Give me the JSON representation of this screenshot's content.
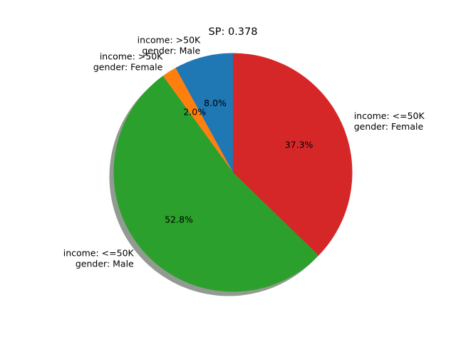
{
  "chart_data": {
    "type": "pie",
    "title": "SP: 0.378",
    "shadow": true,
    "start_angle_deg": 90,
    "direction": "counterclockwise",
    "slices": [
      {
        "label_lines": [
          "income: >50K",
          "gender: Male"
        ],
        "value": 8.0,
        "pct_label": "8.0%",
        "color": "#1f77b4"
      },
      {
        "label_lines": [
          "income: >50K",
          "gender: Female"
        ],
        "value": 2.0,
        "pct_label": "2.0%",
        "color": "#ff7f0e"
      },
      {
        "label_lines": [
          "income: <=50K",
          "gender: Male"
        ],
        "value": 52.8,
        "pct_label": "52.8%",
        "color": "#2ca02c"
      },
      {
        "label_lines": [
          "income: <=50K",
          "gender: Female"
        ],
        "value": 37.3,
        "pct_label": "37.3%",
        "color": "#d62728"
      }
    ]
  }
}
